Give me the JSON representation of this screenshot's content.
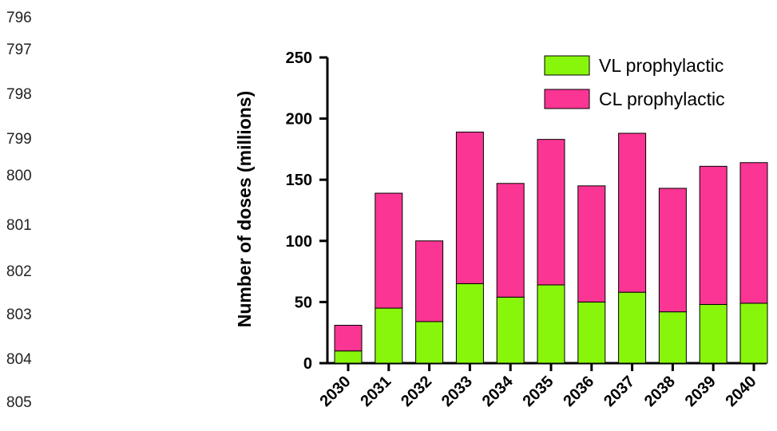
{
  "line_numbers": [
    "796",
    "797",
    "798",
    "799",
    "800",
    "801",
    "802",
    "803",
    "804",
    "805"
  ],
  "colors": {
    "vl": "#88f60a",
    "cl": "#fb3593",
    "axis": "#000000"
  },
  "chart_data": {
    "type": "bar",
    "stacked": true,
    "categories": [
      "2030",
      "2031",
      "2032",
      "2033",
      "2034",
      "2035",
      "2036",
      "2037",
      "2038",
      "2039",
      "2040"
    ],
    "series": [
      {
        "name": "VL prophylactic",
        "values": [
          10,
          45,
          34,
          65,
          54,
          64,
          50,
          58,
          42,
          48,
          49
        ]
      },
      {
        "name": "CL prophylactic",
        "values": [
          21,
          94,
          66,
          124,
          93,
          119,
          95,
          130,
          101,
          113,
          115
        ]
      }
    ],
    "ylabel": "Number of doses (millions)",
    "xlabel": "",
    "ylim": [
      0,
      250
    ],
    "yticks": [
      "0",
      "50",
      "100",
      "150",
      "200",
      "250"
    ],
    "legend": {
      "position": "top-right"
    },
    "grid": false
  }
}
